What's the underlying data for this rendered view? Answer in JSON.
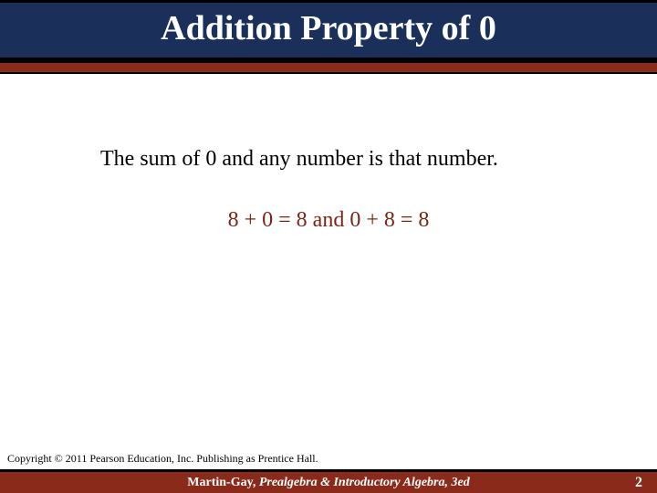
{
  "header": {
    "title": "Addition Property of 0",
    "band_color": "#1a2f5a",
    "title_color": "#ffffff",
    "title_fontsize": 38,
    "border_color": "#000000"
  },
  "accent": {
    "color": "#8a2a1a",
    "height": 12
  },
  "body": {
    "statement": "The sum of 0 and any number is that number.",
    "example": "8 + 0 = 8   and   0 + 8 = 8",
    "statement_color": "#000000",
    "example_color": "#7a2616",
    "fontsize": 24
  },
  "copyright": "Copyright © 2011 Pearson Education, Inc.  Publishing as Prentice Hall.",
  "footer": {
    "author": "Martin-Gay,  ",
    "book": "Prealgebra & Introductory Algebra, 3ed",
    "band_color": "#8a2a1a",
    "text_color": "#ffffff",
    "page_number": "2"
  }
}
